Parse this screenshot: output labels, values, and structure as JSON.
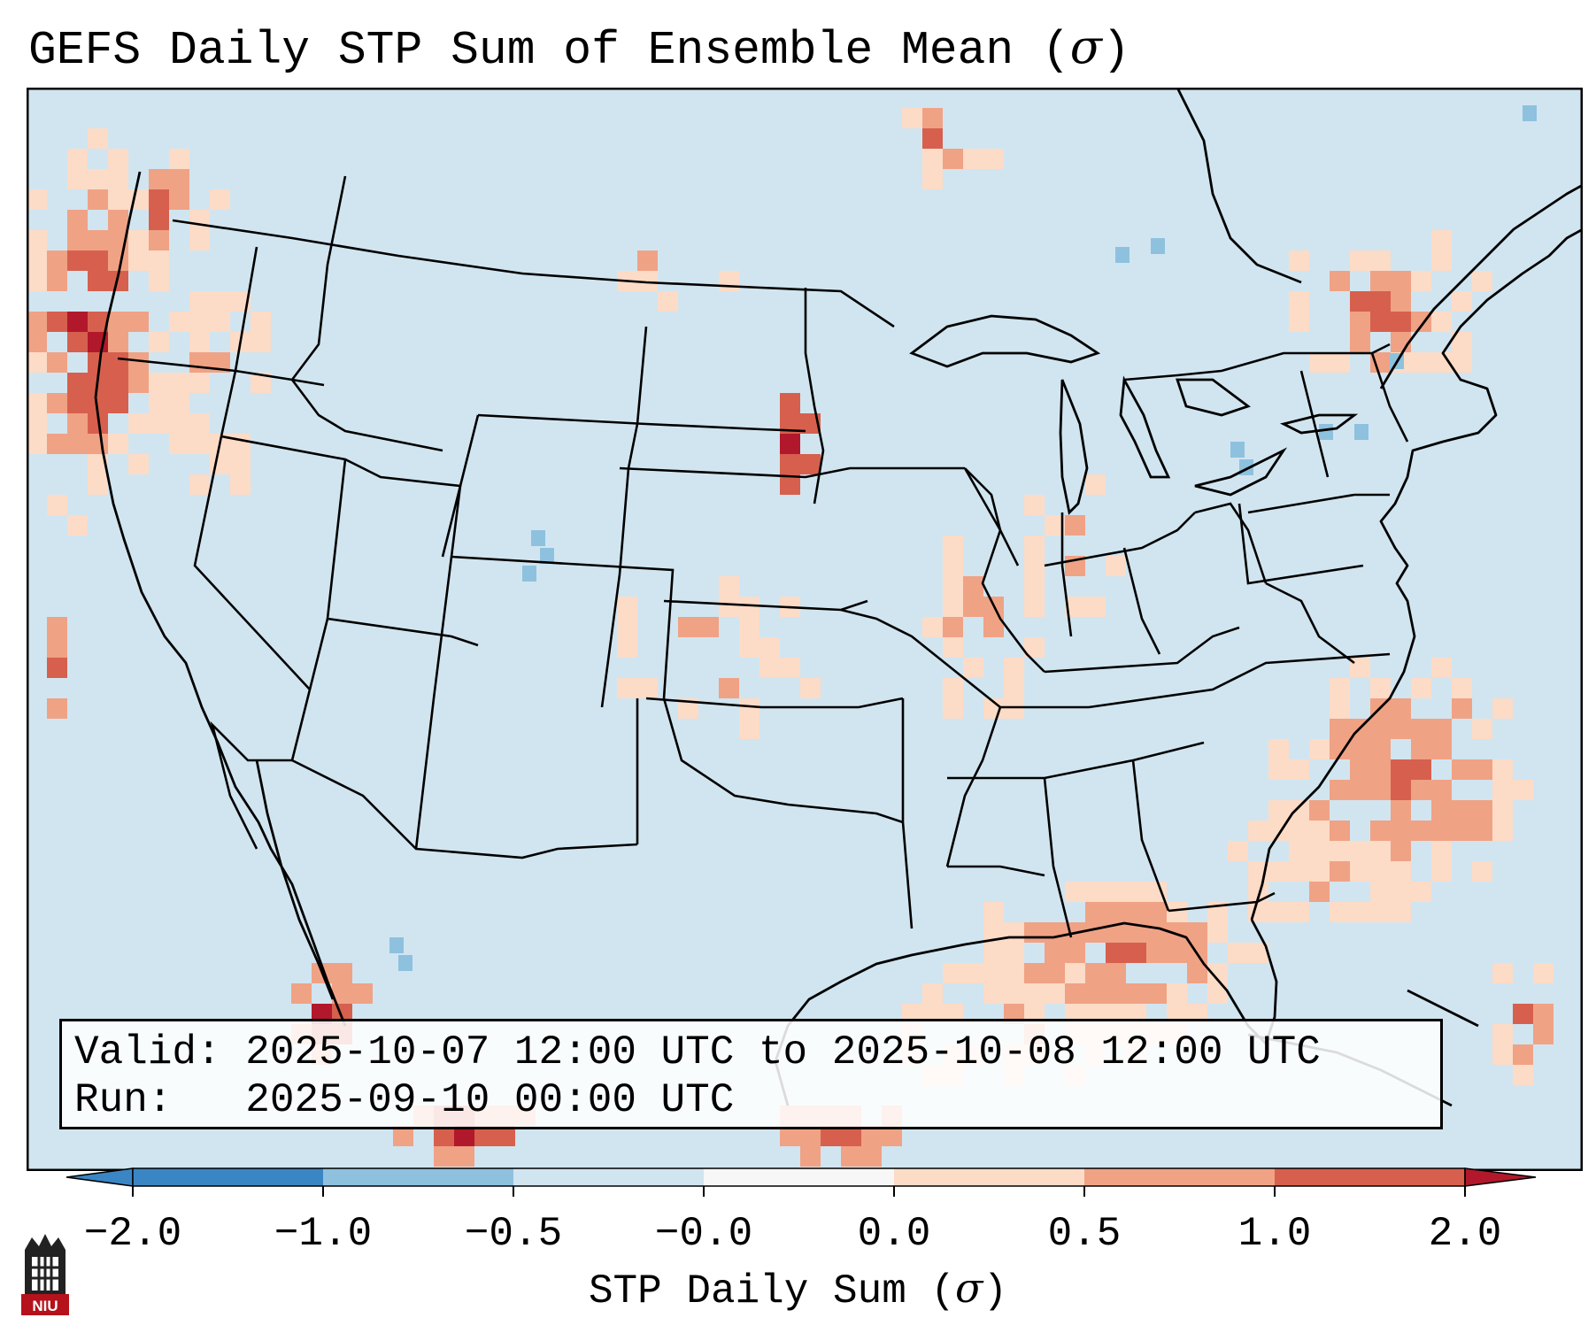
{
  "title": {
    "text": "GEFS Daily STP Sum of Ensemble Mean (",
    "symbol": "σ",
    "close": ")"
  },
  "info": {
    "valid_label": "Valid:",
    "valid_value": "2025-10-07 12:00 UTC to 2025-10-08 12:00 UTC",
    "run_label": "Run:",
    "run_value": "2025-09-10 00:00 UTC"
  },
  "colorbar": {
    "label_text": "STP Daily Sum (",
    "label_symbol": "σ",
    "label_close": ")",
    "ticks": [
      "−2.0",
      "−1.0",
      "−0.5",
      "−0.0",
      "0.0",
      "0.5",
      "1.0",
      "2.0"
    ],
    "colors": [
      "#3a86c4",
      "#8ec1de",
      "#d1e5f0",
      "#f7f7f7",
      "#fcdbc7",
      "#f0a285",
      "#d6604d",
      "#b2182b"
    ],
    "extend": "both"
  },
  "map": {
    "background_color": "#d1e5f0",
    "border_color": "#000000",
    "anomaly_regions": [
      {
        "region": "Pacific Northwest coast",
        "level": 2.0
      },
      {
        "region": "Western Gulf of Mexico",
        "level": 1.0
      },
      {
        "region": "Western Atlantic off Carolinas",
        "level": 1.0
      },
      {
        "region": "Eastern Nebraska / South Dakota",
        "level": 2.0
      },
      {
        "region": "Gulf of California",
        "level": 2.0
      },
      {
        "region": "Southern Quebec / St. Lawrence",
        "level": 1.0
      },
      {
        "region": "Eastern Colorado",
        "level": -0.5
      }
    ]
  },
  "logo": {
    "text": "NIU",
    "color": "#b5121b"
  }
}
